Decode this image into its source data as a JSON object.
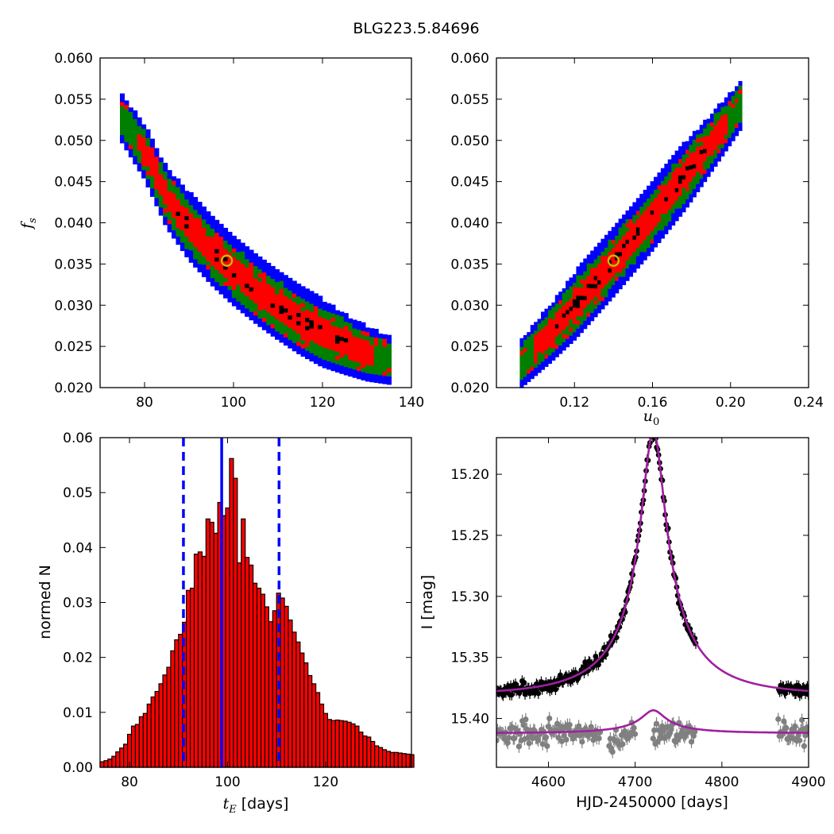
{
  "figure": {
    "title": "BLG223.5.84696"
  },
  "chart_data": [
    {
      "type": "heatmap",
      "xlabel": "",
      "ylabel_sym": "f",
      "ylabel_sub": "s",
      "xlim": [
        70,
        140
      ],
      "ylim": [
        0.02,
        0.06
      ],
      "xticks": [
        "80",
        "100",
        "120",
        "140"
      ],
      "yticks": [
        "0.020",
        "0.025",
        "0.030",
        "0.035",
        "0.040",
        "0.045",
        "0.050",
        "0.055",
        "0.060"
      ],
      "band": {
        "x": [
          75,
          80,
          85,
          90,
          95,
          100,
          105,
          110,
          115,
          120,
          125,
          130,
          135
        ],
        "y": [
          0.0525,
          0.0485,
          0.043,
          0.0395,
          0.0365,
          0.034,
          0.0318,
          0.0298,
          0.028,
          0.0265,
          0.0252,
          0.024,
          0.0232
        ]
      },
      "best_fit": {
        "x": 98.5,
        "y": 0.0354
      },
      "colors": {
        "outer": "#0000ff",
        "middle": "#007f00",
        "inner": "#ff0000",
        "core": "#000000",
        "marker": "#bfbf00"
      }
    },
    {
      "type": "heatmap",
      "xlabel_sym": "u",
      "xlabel_sub": "0",
      "ylabel": "",
      "xlim": [
        0.08,
        0.24
      ],
      "ylim": [
        0.02,
        0.06
      ],
      "xticks": [
        "0.12",
        "0.16",
        "0.20",
        "0.24"
      ],
      "yticks": [
        "0.020",
        "0.025",
        "0.030",
        "0.035",
        "0.040",
        "0.045",
        "0.050",
        "0.055",
        "0.060"
      ],
      "band": {
        "x": [
          0.093,
          0.108,
          0.123,
          0.14,
          0.158,
          0.175,
          0.19,
          0.205
        ],
        "y": [
          0.0228,
          0.0265,
          0.0305,
          0.035,
          0.04,
          0.045,
          0.0495,
          0.054
        ]
      },
      "best_fit": {
        "x": 0.14,
        "y": 0.0354
      },
      "colors": {
        "outer": "#0000ff",
        "middle": "#007f00",
        "inner": "#ff0000",
        "core": "#000000",
        "marker": "#bfbf00"
      }
    },
    {
      "type": "bar",
      "xlabel_sym": "t",
      "xlabel_sub": "E",
      "xlabel_rest": " [days]",
      "ylabel": "normed N",
      "xlim": [
        74,
        137.5
      ],
      "ylim": [
        0,
        0.06
      ],
      "xticks": [
        "80",
        "100",
        "120"
      ],
      "yticks": [
        "0.00",
        "0.01",
        "0.02",
        "0.03",
        "0.04",
        "0.05",
        "0.06"
      ],
      "bin_start": 74,
      "bin_width": 0.8,
      "values": [
        0.001,
        0.0012,
        0.0015,
        0.002,
        0.0028,
        0.0035,
        0.0042,
        0.006,
        0.0075,
        0.0078,
        0.0092,
        0.0098,
        0.0115,
        0.0128,
        0.0138,
        0.0152,
        0.0168,
        0.0182,
        0.0212,
        0.0232,
        0.0242,
        0.0264,
        0.0322,
        0.0326,
        0.0388,
        0.0392,
        0.0384,
        0.0452,
        0.0446,
        0.0426,
        0.0482,
        0.0458,
        0.0472,
        0.0562,
        0.0526,
        0.0372,
        0.0452,
        0.0382,
        0.0368,
        0.0335,
        0.0326,
        0.0315,
        0.0292,
        0.0265,
        0.0285,
        0.0317,
        0.0308,
        0.0293,
        0.0268,
        0.0246,
        0.0228,
        0.0208,
        0.019,
        0.0167,
        0.0152,
        0.0136,
        0.0115,
        0.0098,
        0.0087,
        0.0085,
        0.0086,
        0.0085,
        0.0084,
        0.0082,
        0.0079,
        0.0075,
        0.0064,
        0.0057,
        0.0055,
        0.0047,
        0.0039,
        0.0036,
        0.0032,
        0.0029,
        0.0027,
        0.0027,
        0.0026,
        0.0025,
        0.0024,
        0.0023
      ],
      "solid_line": 98.8,
      "dashed_lines": [
        91.0,
        110.5
      ],
      "colors": {
        "bar": "#ff0000",
        "edge": "#000000",
        "lines": "#0000ff"
      }
    },
    {
      "type": "scatter",
      "xlabel": "HJD-2450000 [days]",
      "ylabel": "I [mag]",
      "xlim": [
        4540,
        4900
      ],
      "ylim": [
        15.17,
        15.44
      ],
      "y_inverted": true,
      "xticks": [
        "4600",
        "4700",
        "4800",
        "4900"
      ],
      "yticks": [
        "15.20",
        "15.25",
        "15.30",
        "15.35",
        "15.40"
      ],
      "model": {
        "t0": 4721,
        "tE": 98.8,
        "u0": 0.14,
        "fs": 0.0354,
        "baseline": 15.3805,
        "second_baseline": 15.412
      },
      "observing_windows": [
        [
          4540,
          4770
        ],
        [
          4865,
          4900
        ]
      ],
      "colors": {
        "data": "#000000",
        "reference": "#808080",
        "model": "#a020a0"
      }
    }
  ]
}
